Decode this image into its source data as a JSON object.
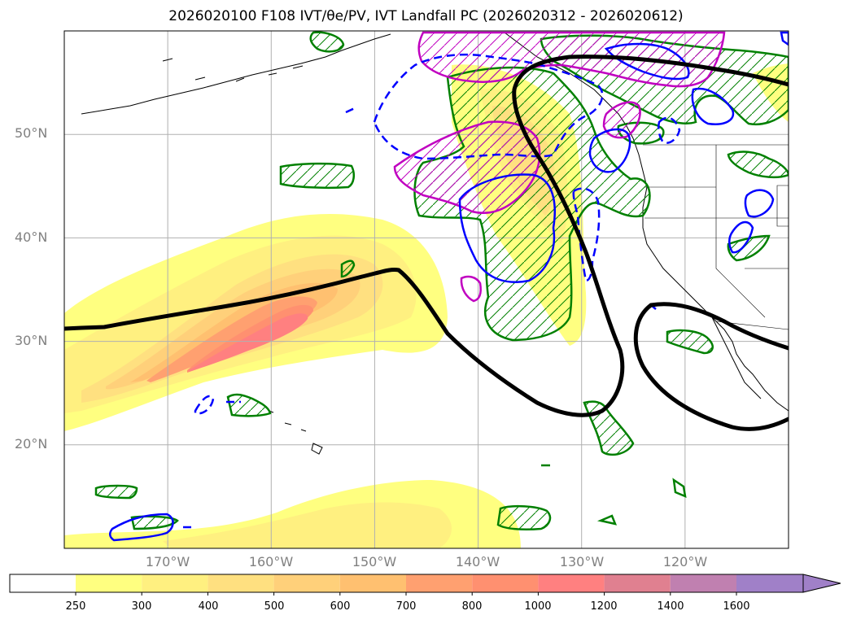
{
  "title": "2026020100 F108 IVT/θe/PV, IVT Landfall PC (2026020312 - 2026020612)",
  "map": {
    "projection": "equirectangular",
    "lon_range": [
      -180,
      -110
    ],
    "lat_range": [
      10,
      60
    ],
    "lat_ticks": [
      "50°N",
      "40°N",
      "30°N",
      "20°N"
    ],
    "lon_ticks": [
      "170°W",
      "160°W",
      "150°W",
      "140°W",
      "130°W",
      "120°W"
    ],
    "gridlines": true,
    "colors": {
      "coast": "#000000",
      "grid": "#b0b0b0",
      "black_contour": "#000000",
      "green_contour": "#008000",
      "blue_contour": "#0000ff",
      "magenta_contour": "#c000c0"
    }
  },
  "colorbar": {
    "levels": [
      "250",
      "300",
      "400",
      "500",
      "600",
      "700",
      "800",
      "1000",
      "1200",
      "1400",
      "1600"
    ],
    "colors": [
      "#ffffff",
      "#ffff80",
      "#fff080",
      "#ffe080",
      "#ffd07a",
      "#ffc070",
      "#ffa070",
      "#ff9070",
      "#ff8080",
      "#e08090",
      "#c080b0",
      "#a080c8"
    ],
    "extend": "max"
  }
}
